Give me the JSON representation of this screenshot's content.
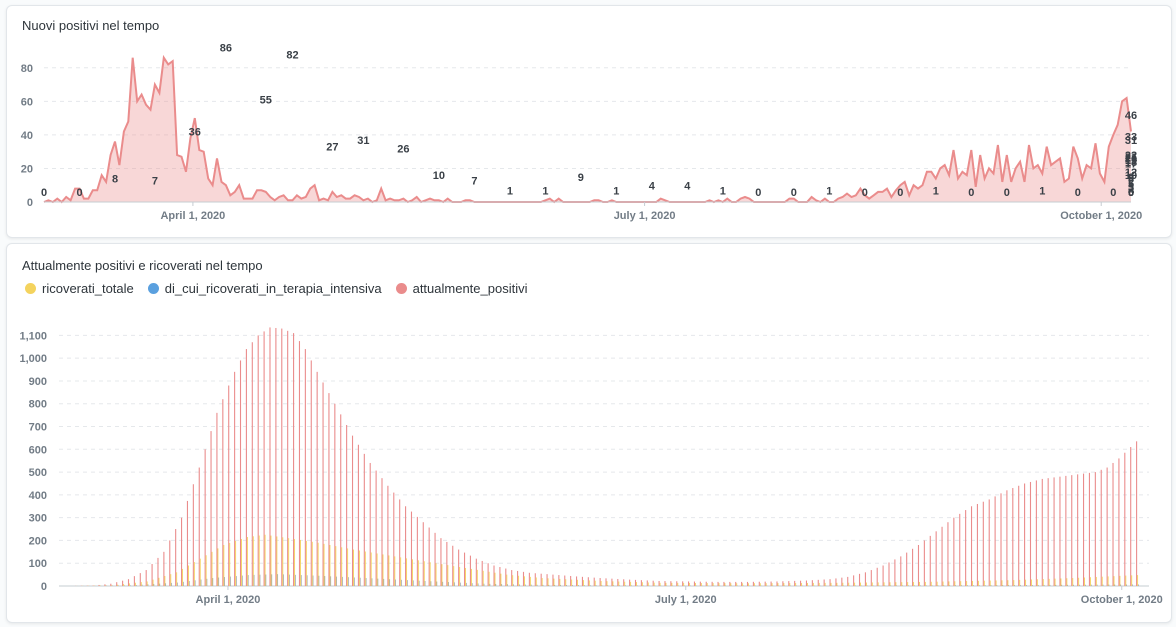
{
  "colors": {
    "positives": "#ea8c8c",
    "hospitalized": "#f4d35e",
    "intensive": "#5aa0df",
    "grid": "#e5e8eb",
    "axis_text": "#727c86"
  },
  "chart_data": [
    {
      "type": "area",
      "title": "Nuovi positivi nel tempo",
      "ylim": [
        0,
        90
      ],
      "yticks": [
        0,
        20,
        40,
        60,
        80
      ],
      "x_start": "2020-03-02",
      "x_end": "2020-10-07",
      "xticks": [
        "April 1, 2020",
        "July 1, 2020",
        "October 1, 2020"
      ],
      "values": [
        0,
        1,
        0,
        2,
        0,
        3,
        1,
        8,
        8,
        2,
        2,
        7,
        7,
        16,
        12,
        28,
        36,
        22,
        42,
        48,
        86,
        60,
        64,
        58,
        55,
        70,
        65,
        86,
        82,
        84,
        28,
        27,
        18,
        38,
        50,
        31,
        30,
        14,
        10,
        26,
        12,
        10,
        4,
        6,
        10,
        2,
        2,
        2,
        7,
        7,
        6,
        3,
        1,
        3,
        4,
        1,
        1,
        4,
        2,
        3,
        8,
        10,
        1,
        2,
        1,
        6,
        3,
        4,
        2,
        2,
        4,
        3,
        1,
        2,
        0,
        1,
        8,
        1,
        2,
        1,
        1,
        2,
        0,
        1,
        3,
        0,
        1,
        2,
        1,
        1,
        0,
        2,
        0,
        0,
        0,
        1,
        1,
        0,
        0,
        0,
        0,
        0,
        0,
        0,
        0,
        0,
        0,
        0,
        0,
        0,
        0,
        0,
        0,
        1,
        2,
        0,
        2,
        0,
        0,
        0,
        0,
        0,
        0,
        0,
        1,
        1,
        0,
        0,
        1,
        0,
        0,
        0,
        0,
        0,
        0,
        0,
        0,
        0,
        0,
        2,
        1,
        0,
        0,
        0,
        0,
        0,
        0,
        0,
        0,
        0,
        1,
        0,
        1,
        0,
        2,
        0,
        0,
        2,
        3,
        2,
        0,
        0,
        0,
        0,
        0,
        0,
        0,
        0,
        2,
        2,
        0,
        0,
        0,
        3,
        1,
        0,
        2,
        0,
        0,
        2,
        3,
        5,
        3,
        4,
        8,
        4,
        2,
        4,
        6,
        6,
        8,
        3,
        7,
        10,
        12,
        4,
        10,
        8,
        10,
        18,
        18,
        14,
        20,
        22,
        16,
        31,
        14,
        18,
        16,
        31,
        9,
        28,
        14,
        20,
        17,
        34,
        12,
        28,
        12,
        20,
        24,
        12,
        34,
        20,
        22,
        17,
        33,
        22,
        24,
        26,
        12,
        14,
        33,
        26,
        14,
        22,
        20,
        35,
        17,
        12,
        33,
        40,
        46,
        60,
        62,
        42
      ],
      "data_labels": [
        {
          "x": 0,
          "label": "0"
        },
        {
          "x": 10,
          "label": "0"
        },
        {
          "x": 20,
          "label": "8"
        },
        {
          "x": 30,
          "label": "7"
        },
        {
          "x": 50,
          "label": "36"
        },
        {
          "x": 50,
          "label": "86"
        },
        {
          "x": 60,
          "label": "55"
        },
        {
          "x": 70,
          "label": "82"
        },
        {
          "x": 80,
          "label": "27"
        },
        {
          "x": 90,
          "label": "31"
        },
        {
          "x": 100,
          "label": "26"
        },
        {
          "x": 110,
          "label": "10"
        },
        {
          "x": 120,
          "label": "7"
        },
        {
          "x": 130,
          "label": "1"
        },
        {
          "x": 140,
          "label": "1"
        },
        {
          "x": 150,
          "label": "9"
        },
        {
          "x": 160,
          "label": "1"
        },
        {
          "x": 170,
          "label": "4"
        },
        {
          "x": 180,
          "label": "4"
        },
        {
          "x": 190,
          "label": "1"
        },
        {
          "x": 200,
          "label": "0"
        },
        {
          "x": 210,
          "label": "0"
        },
        {
          "x": 220,
          "label": "1"
        },
        {
          "x": 230,
          "label": "0"
        },
        {
          "x": 240,
          "label": "0"
        },
        {
          "x": 250,
          "label": "1"
        },
        {
          "x": 260,
          "label": "0"
        },
        {
          "x": 270,
          "label": "0"
        },
        {
          "x": 280,
          "label": "1"
        },
        {
          "x": 290,
          "label": "0"
        },
        {
          "x": 300,
          "label": "0"
        },
        {
          "x": 310,
          "label": "0"
        },
        {
          "x": 320,
          "label": "0"
        },
        {
          "x": 330,
          "label": "0"
        },
        {
          "x": 340,
          "label": "0"
        },
        {
          "x": 350,
          "label": "0"
        },
        {
          "x": 360,
          "label": "2"
        },
        {
          "x": 370,
          "label": "3"
        },
        {
          "x": 380,
          "label": "0"
        },
        {
          "x": 390,
          "label": "0"
        },
        {
          "x": 400,
          "label": "2"
        },
        {
          "x": 410,
          "label": "3"
        },
        {
          "x": 420,
          "label": "5"
        },
        {
          "x": 430,
          "label": "8"
        },
        {
          "x": 440,
          "label": "10"
        },
        {
          "x": 450,
          "label": "18"
        },
        {
          "x": 460,
          "label": "20"
        },
        {
          "x": 470,
          "label": "31"
        },
        {
          "x": 480,
          "label": "9"
        },
        {
          "x": 490,
          "label": "12"
        },
        {
          "x": 500,
          "label": "17"
        },
        {
          "x": 510,
          "label": "22"
        },
        {
          "x": 520,
          "label": "33"
        },
        {
          "x": 530,
          "label": "19"
        },
        {
          "x": 540,
          "label": "21"
        },
        {
          "x": 550,
          "label": "46"
        }
      ]
    },
    {
      "type": "bar",
      "title": "Attualmente positivi e ricoverati nel tempo",
      "ylim": [
        0,
        1150
      ],
      "yticks": [
        0,
        100,
        200,
        300,
        400,
        500,
        600,
        700,
        800,
        900,
        "1,000",
        "1,100"
      ],
      "x_start": "2020-02-24",
      "x_end": "2020-10-07",
      "xticks": [
        "April 1, 2020",
        "July 1, 2020",
        "October 1, 2020"
      ],
      "series": [
        {
          "name": "ricoverati_totale"
        },
        {
          "name": "di_cui_ricoverati_in_terapia_intensiva"
        },
        {
          "name": "attualmente_positivi"
        }
      ],
      "positives_key": [
        [
          0,
          0
        ],
        [
          8,
          2
        ],
        [
          14,
          10
        ],
        [
          20,
          30
        ],
        [
          26,
          70
        ],
        [
          32,
          150
        ],
        [
          38,
          300
        ],
        [
          44,
          520
        ],
        [
          50,
          760
        ],
        [
          56,
          940
        ],
        [
          60,
          1040
        ],
        [
          64,
          1100
        ],
        [
          68,
          1135
        ],
        [
          72,
          1130
        ],
        [
          76,
          1110
        ],
        [
          80,
          1040
        ],
        [
          84,
          940
        ],
        [
          90,
          800
        ],
        [
          96,
          660
        ],
        [
          102,
          540
        ],
        [
          108,
          440
        ],
        [
          114,
          350
        ],
        [
          120,
          280
        ],
        [
          126,
          210
        ],
        [
          132,
          160
        ],
        [
          138,
          120
        ],
        [
          144,
          90
        ],
        [
          150,
          70
        ],
        [
          156,
          58
        ],
        [
          164,
          50
        ],
        [
          172,
          42
        ],
        [
          180,
          35
        ],
        [
          190,
          28
        ],
        [
          200,
          22
        ],
        [
          210,
          20
        ],
        [
          220,
          18
        ],
        [
          230,
          18
        ],
        [
          240,
          20
        ],
        [
          250,
          24
        ],
        [
          258,
          30
        ],
        [
          264,
          40
        ],
        [
          270,
          60
        ],
        [
          276,
          90
        ],
        [
          282,
          130
        ],
        [
          288,
          180
        ],
        [
          294,
          240
        ],
        [
          300,
          300
        ],
        [
          306,
          350
        ],
        [
          312,
          380
        ],
        [
          318,
          420
        ],
        [
          324,
          450
        ],
        [
          330,
          470
        ],
        [
          336,
          480
        ],
        [
          342,
          490
        ],
        [
          348,
          500
        ],
        [
          352,
          520
        ],
        [
          356,
          560
        ],
        [
          360,
          610
        ],
        [
          362,
          635
        ]
      ],
      "hospitalized_key": [
        [
          0,
          0
        ],
        [
          14,
          3
        ],
        [
          26,
          20
        ],
        [
          36,
          60
        ],
        [
          44,
          120
        ],
        [
          52,
          180
        ],
        [
          60,
          215
        ],
        [
          66,
          225
        ],
        [
          74,
          210
        ],
        [
          84,
          190
        ],
        [
          96,
          160
        ],
        [
          110,
          130
        ],
        [
          124,
          100
        ],
        [
          136,
          75
        ],
        [
          148,
          50
        ],
        [
          160,
          35
        ],
        [
          180,
          22
        ],
        [
          200,
          14
        ],
        [
          230,
          12
        ],
        [
          260,
          14
        ],
        [
          290,
          18
        ],
        [
          320,
          26
        ],
        [
          340,
          35
        ],
        [
          362,
          48
        ]
      ],
      "intensive_key": [
        [
          0,
          0
        ],
        [
          20,
          3
        ],
        [
          36,
          15
        ],
        [
          48,
          35
        ],
        [
          60,
          48
        ],
        [
          70,
          52
        ],
        [
          84,
          45
        ],
        [
          100,
          35
        ],
        [
          120,
          22
        ],
        [
          140,
          10
        ],
        [
          160,
          5
        ],
        [
          200,
          2
        ],
        [
          260,
          2
        ],
        [
          320,
          4
        ],
        [
          362,
          7
        ]
      ]
    }
  ]
}
